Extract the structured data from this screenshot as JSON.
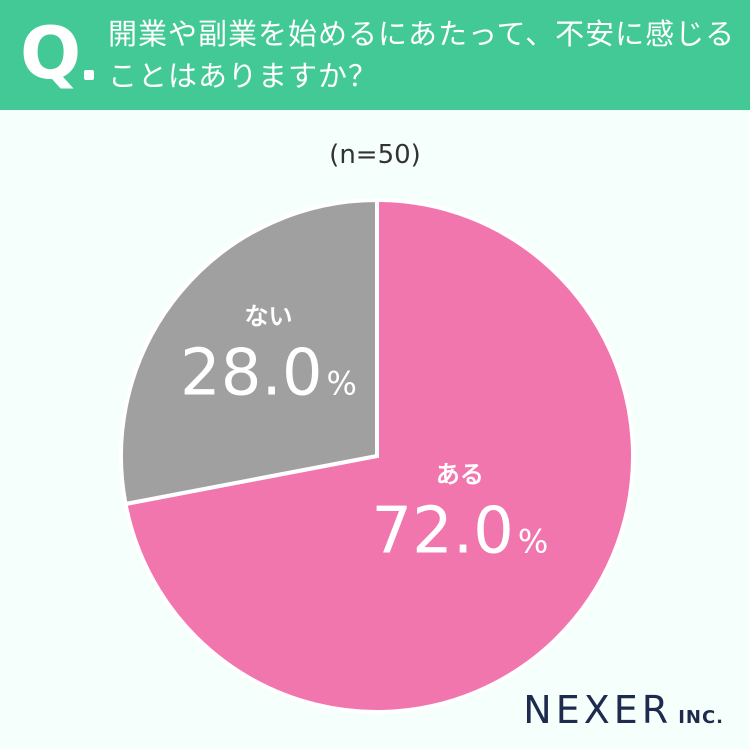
{
  "header": {
    "q_letter": "Q",
    "question_line1": "開業や副業を始めるにあたって、不安に感じる",
    "question_line2": "ことはありますか？",
    "bg_color": "#43c996"
  },
  "sample_note": "(n=50)",
  "chart_data": {
    "type": "pie",
    "title": "",
    "slices": [
      {
        "label": "ある",
        "value": 72.0,
        "display": "72.0",
        "unit": "%",
        "color": "#f276ae"
      },
      {
        "label": "ない",
        "value": 28.0,
        "display": "28.0",
        "unit": "%",
        "color": "#a0a0a0"
      }
    ],
    "start": "12 o'clock",
    "direction": "clockwise",
    "legend": "none"
  },
  "logo": {
    "main": "NEXER",
    "sub": "INC."
  }
}
